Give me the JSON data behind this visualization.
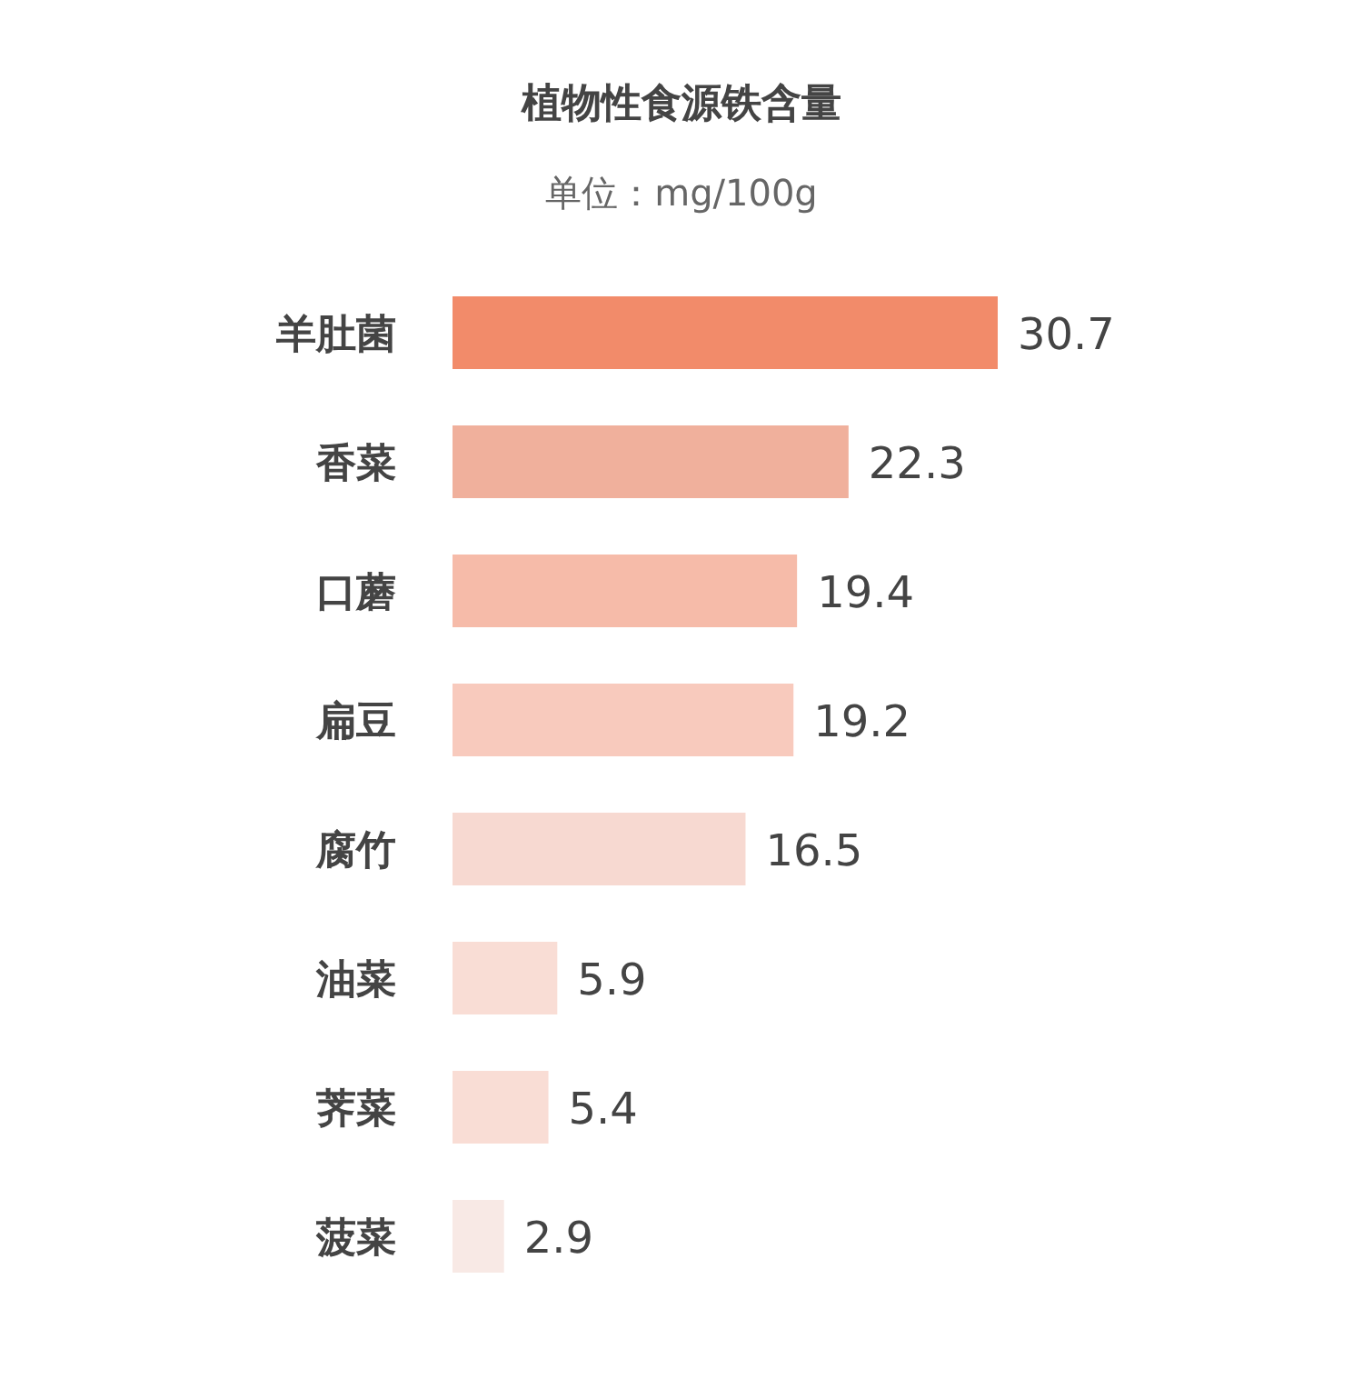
{
  "chart_data": {
    "type": "bar",
    "orientation": "horizontal",
    "title": "植物性食源铁含量",
    "subtitle": "单位：mg/100g",
    "categories": [
      "羊肚菌",
      "香菜",
      "口蘑",
      "扁豆",
      "腐竹",
      "油菜",
      "荠菜",
      "菠菜"
    ],
    "values": [
      30.7,
      22.3,
      19.4,
      19.2,
      16.5,
      5.9,
      5.4,
      2.9
    ],
    "colors": [
      "#f28b6a",
      "#f0b09c",
      "#f6bba9",
      "#f8cabd",
      "#f7d9d1",
      "#f9ddd5",
      "#f9ddd5",
      "#f8e9e5"
    ],
    "data_labels": true
  }
}
